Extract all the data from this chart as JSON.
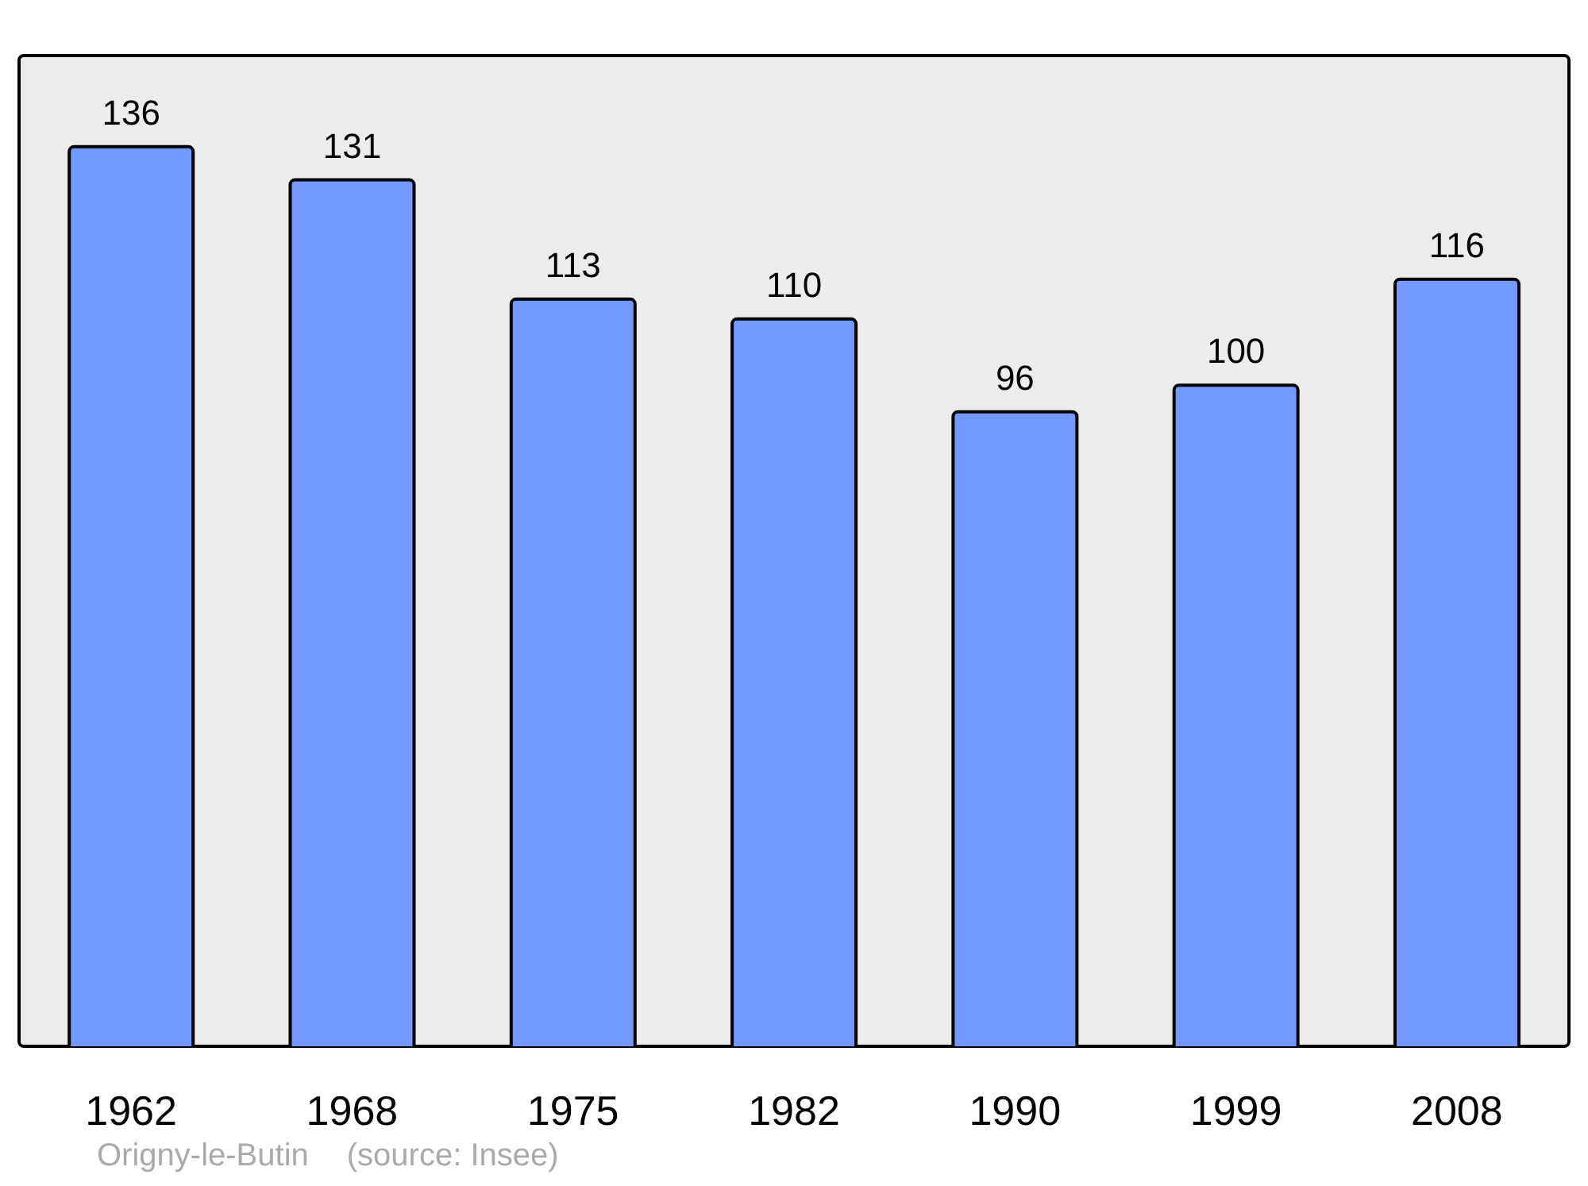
{
  "chart_data": {
    "type": "bar",
    "categories": [
      "1962",
      "1968",
      "1975",
      "1982",
      "1990",
      "1999",
      "2008"
    ],
    "values": [
      136,
      131,
      113,
      110,
      96,
      100,
      116
    ],
    "color": "#7399ff",
    "ylim": [
      0,
      150
    ],
    "tick_labels": "x",
    "data_labels": true,
    "annotations": [
      "Origny-le-Butin",
      "(source: Insee)"
    ]
  }
}
